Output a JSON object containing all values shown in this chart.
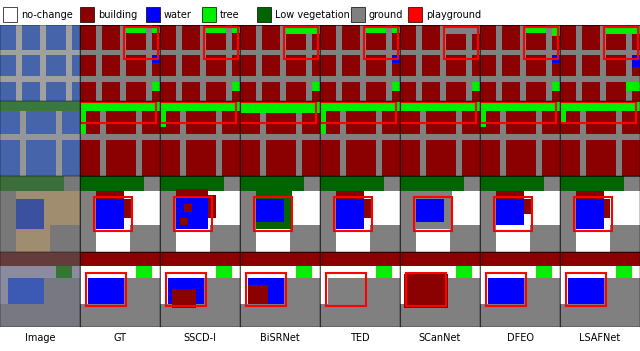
{
  "legend_items": [
    {
      "label": "no-change",
      "color": "#ffffff",
      "edgecolor": "#000000"
    },
    {
      "label": "building",
      "color": "#8b0000",
      "edgecolor": "#000000"
    },
    {
      "label": "water",
      "color": "#0000ff",
      "edgecolor": "#000000"
    },
    {
      "label": "tree",
      "color": "#00ee00",
      "edgecolor": "#000000"
    },
    {
      "label": "Low vegetation",
      "color": "#006400",
      "edgecolor": "#000000"
    },
    {
      "label": "ground",
      "color": "#808080",
      "edgecolor": "#000000"
    },
    {
      "label": "playground",
      "color": "#ff0000",
      "edgecolor": "#000000"
    }
  ],
  "col_labels": [
    "Image",
    "GT",
    "SSCD-I",
    "BiSRNet",
    "TED",
    "SCanNet",
    "DFEO",
    "LSAFNet"
  ],
  "n_rows": 4,
  "n_cols": 8,
  "legend_fontsize": 7,
  "label_fontsize": 7,
  "fig_width": 6.4,
  "fig_height": 3.51,
  "background": "#ffffff",
  "highlight_color": "#ff0000",
  "highlight_linewidth": 1.5,
  "colors": {
    "W": "#ffffff",
    "B": "#8b0000",
    "U": "#0000ff",
    "T": "#00ee00",
    "V": "#006400",
    "G": "#808080",
    "P": "#ff0000"
  }
}
